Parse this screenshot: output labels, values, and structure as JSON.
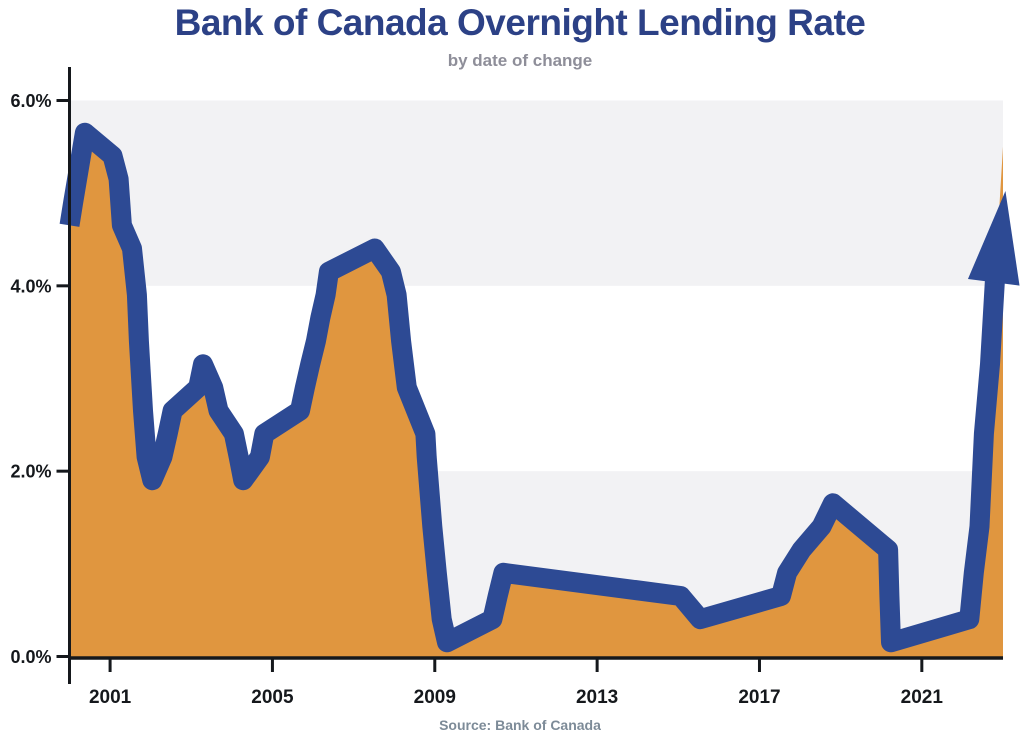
{
  "chart_data": {
    "type": "area",
    "title": "Bank of Canada Overnight Lending Rate",
    "subtitle": "by date of change",
    "source": "Source: Bank of Canada",
    "xlabel": "",
    "ylabel": "",
    "legend": false,
    "grid": false,
    "x_range": [
      2000,
      2023
    ],
    "y_range": [
      0,
      6
    ],
    "x_ticks": [
      {
        "value": 2001,
        "label": "2001"
      },
      {
        "value": 2005,
        "label": "2005"
      },
      {
        "value": 2009,
        "label": "2009"
      },
      {
        "value": 2013,
        "label": "2013"
      },
      {
        "value": 2017,
        "label": "2017"
      },
      {
        "value": 2021,
        "label": "2021"
      }
    ],
    "y_ticks": [
      {
        "value": 0,
        "label": "0.0%"
      },
      {
        "value": 2,
        "label": "2.0%"
      },
      {
        "value": 4,
        "label": "4.0%"
      },
      {
        "value": 6,
        "label": "6.0%"
      }
    ],
    "bands": [
      [
        0,
        2
      ],
      [
        4,
        6
      ]
    ],
    "series": [
      {
        "name": "Overnight lending rate (%), plotted at each date of change",
        "points": [
          [
            2000.0,
            4.75
          ],
          [
            2000.09,
            5.0
          ],
          [
            2000.38,
            5.75
          ],
          [
            2001.06,
            5.5
          ],
          [
            2001.21,
            5.25
          ],
          [
            2001.29,
            4.75
          ],
          [
            2001.54,
            4.5
          ],
          [
            2001.66,
            4.0
          ],
          [
            2001.71,
            3.5
          ],
          [
            2001.81,
            2.75
          ],
          [
            2001.9,
            2.25
          ],
          [
            2002.04,
            2.0
          ],
          [
            2002.29,
            2.25
          ],
          [
            2002.42,
            2.5
          ],
          [
            2002.54,
            2.75
          ],
          [
            2003.17,
            3.0
          ],
          [
            2003.29,
            3.25
          ],
          [
            2003.54,
            3.0
          ],
          [
            2003.67,
            2.75
          ],
          [
            2004.05,
            2.5
          ],
          [
            2004.17,
            2.25
          ],
          [
            2004.28,
            2.0
          ],
          [
            2004.69,
            2.25
          ],
          [
            2004.8,
            2.5
          ],
          [
            2005.68,
            2.75
          ],
          [
            2005.8,
            3.0
          ],
          [
            2005.93,
            3.25
          ],
          [
            2006.07,
            3.5
          ],
          [
            2006.18,
            3.75
          ],
          [
            2006.31,
            4.0
          ],
          [
            2006.39,
            4.25
          ],
          [
            2007.52,
            4.5
          ],
          [
            2007.92,
            4.25
          ],
          [
            2008.06,
            4.0
          ],
          [
            2008.17,
            3.5
          ],
          [
            2008.31,
            3.0
          ],
          [
            2008.77,
            2.5
          ],
          [
            2008.8,
            2.25
          ],
          [
            2008.94,
            1.5
          ],
          [
            2009.05,
            1.0
          ],
          [
            2009.17,
            0.5
          ],
          [
            2009.3,
            0.25
          ],
          [
            2010.42,
            0.5
          ],
          [
            2010.55,
            0.75
          ],
          [
            2010.69,
            1.0
          ],
          [
            2015.06,
            0.75
          ],
          [
            2015.54,
            0.5
          ],
          [
            2017.53,
            0.75
          ],
          [
            2017.68,
            1.0
          ],
          [
            2018.04,
            1.25
          ],
          [
            2018.53,
            1.5
          ],
          [
            2018.81,
            1.75
          ],
          [
            2020.17,
            1.25
          ],
          [
            2020.2,
            0.75
          ],
          [
            2020.24,
            0.25
          ],
          [
            2022.17,
            0.5
          ],
          [
            2022.28,
            1.0
          ],
          [
            2022.42,
            1.5
          ],
          [
            2022.53,
            2.5
          ],
          [
            2022.68,
            3.25
          ]
        ]
      }
    ],
    "line_end": [
      2022.82,
      4.3
    ],
    "fill_end": [
      2023.0,
      5.6
    ],
    "arrow": {
      "tip": [
        2023.06,
        5.12
      ],
      "direction": "up"
    },
    "style": {
      "line_color": "#2d4a94",
      "fill_color": "#e0963f",
      "band_color": "#f2f2f4",
      "axis_color": "#15181c",
      "label_color": "#15181c",
      "title_color": "#2c4186",
      "subtitle_color": "#8e8e99",
      "source_color": "#7d8b98",
      "line_width": 20
    }
  }
}
